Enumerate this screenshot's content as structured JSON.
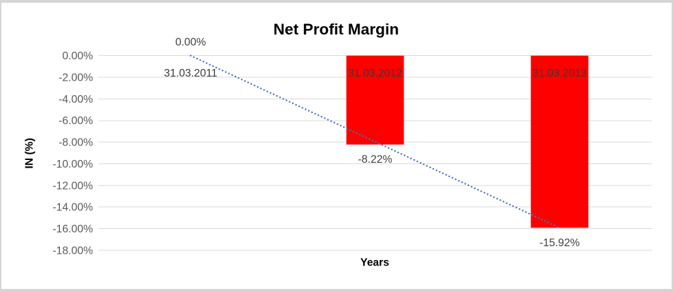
{
  "window": {
    "background": "#ffffff",
    "border_color": "#d5d5d5"
  },
  "chart_data": {
    "type": "bar",
    "title": "Net Profit Margin",
    "xlabel": "Years",
    "ylabel": "IN (%)",
    "categories": [
      "31.03.2011",
      "31.03.2012",
      "31.03.2013"
    ],
    "series": [
      {
        "name": "Net Profit Margin",
        "values": [
          0,
          -8.22,
          -15.92
        ]
      }
    ],
    "data_labels": [
      "0.00%",
      "-8.22%",
      "-15.92%"
    ],
    "ylim": [
      -18,
      0
    ],
    "yticks": [
      0,
      -2,
      -4,
      -6,
      -8,
      -10,
      -12,
      -14,
      -16,
      -18
    ],
    "ytick_labels": [
      "0.00%",
      "-2.00%",
      "-4.00%",
      "-6.00%",
      "-8.00%",
      "-10.00%",
      "-12.00%",
      "-14.00%",
      "-16.00%",
      "-18.00%"
    ],
    "grid": true,
    "legend": "none",
    "trendline": {
      "type": "linear",
      "line_style": "dotted",
      "endpoint_values": [
        0,
        -15.92
      ]
    },
    "colors": {
      "bar": "#FF0000",
      "trendline": "#4472C4",
      "gridline": "#D9D9D9",
      "title_text": "#3F3F3F",
      "axis_title_text": "#3F3F3F",
      "tick_label_text": "#595959",
      "data_label_text": "#3F3F3F",
      "category_label_text": "#3A3A3A"
    }
  }
}
